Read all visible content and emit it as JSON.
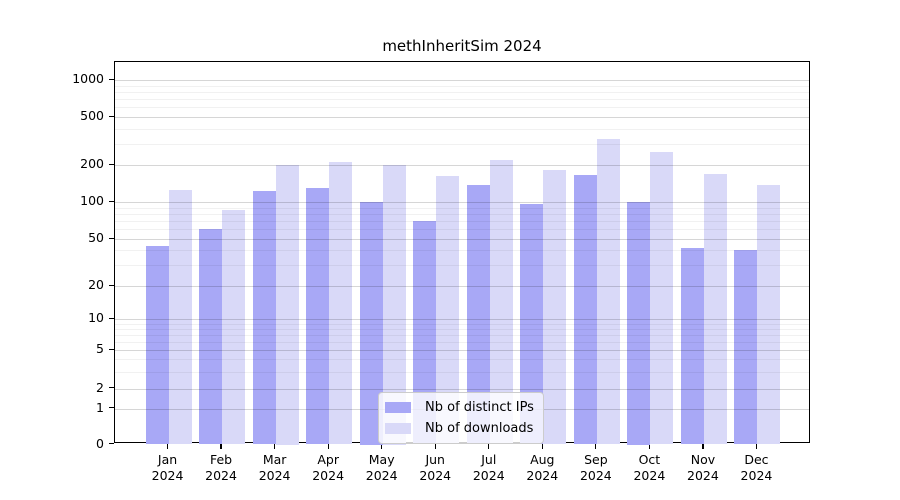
{
  "chart_data": {
    "type": "bar",
    "title": "methInheritSim 2024",
    "x": {
      "months": [
        "Jan",
        "Feb",
        "Mar",
        "Apr",
        "May",
        "Jun",
        "Jul",
        "Aug",
        "Sep",
        "Oct",
        "Nov",
        "Dec"
      ],
      "year": "2024"
    },
    "series": [
      {
        "name": "Nb of distinct IPs",
        "color": "#a8a8f6",
        "values": [
          44,
          60,
          122,
          130,
          100,
          70,
          137,
          97,
          166,
          100,
          42,
          40
        ]
      },
      {
        "name": "Nb of downloads",
        "color": "#d9d9f8",
        "values": [
          125,
          86,
          200,
          212,
          200,
          162,
          218,
          182,
          330,
          255,
          170,
          138
        ]
      }
    ],
    "yticks": [
      0,
      1,
      2,
      5,
      10,
      20,
      50,
      100,
      200,
      500,
      1000
    ],
    "yscale": "log-like",
    "ylim": [
      0,
      1420
    ],
    "grid": "horizontal major and minor gridlines, drawn over bars",
    "legend_position": "inside bottom-center"
  }
}
